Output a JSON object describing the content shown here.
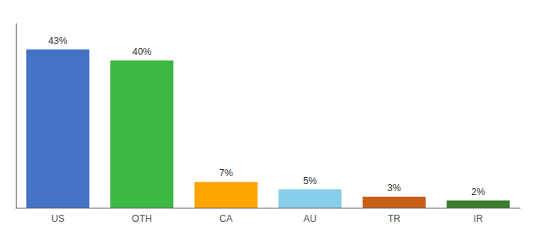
{
  "chart_data": {
    "type": "bar",
    "categories": [
      "US",
      "OTH",
      "CA",
      "AU",
      "TR",
      "IR"
    ],
    "values": [
      43,
      40,
      7,
      5,
      3,
      2
    ],
    "value_labels": [
      "43%",
      "40%",
      "7%",
      "5%",
      "3%",
      "2%"
    ],
    "colors": [
      "#4472C4",
      "#3CB843",
      "#FFA500",
      "#87CEEB",
      "#C8601A",
      "#3A7D2C"
    ],
    "ylim": [
      0,
      50
    ],
    "data_labels": true,
    "tick_labels": "x",
    "grid": false
  }
}
